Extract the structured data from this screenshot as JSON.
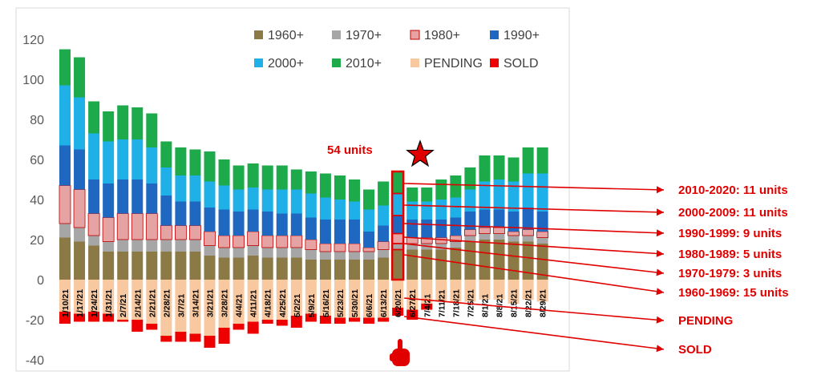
{
  "chart_data": {
    "type": "bar",
    "stacked": true,
    "ylim": [
      -40,
      120
    ],
    "yticks": [
      -40,
      -20,
      0,
      20,
      40,
      60,
      80,
      100,
      120
    ],
    "grid": false,
    "legend_position": "top-right",
    "categories": [
      "1/10/21",
      "1/17/21",
      "1/24/21",
      "1/31/21",
      "2/7/21",
      "2/14/21",
      "2/21/21",
      "2/28/21",
      "3/7/21",
      "3/14/21",
      "3/21/21",
      "3/28/21",
      "4/4/21",
      "4/11/21",
      "4/18/21",
      "4/25/21",
      "5/2/21",
      "5/9/21",
      "5/16/21",
      "5/23/21",
      "5/30/21",
      "6/6/21",
      "6/13/21",
      "6/20/21",
      "6/27/21",
      "7/4/21",
      "7/11/21",
      "7/18/21",
      "7/25/21",
      "8/1/21",
      "8/8/21",
      "8/15/21",
      "8/22/21",
      "8/29/21"
    ],
    "series": [
      {
        "name": "1960+",
        "color": "#8c7a46",
        "values": [
          21,
          19,
          17,
          14,
          14,
          14,
          14,
          14,
          14,
          14,
          12,
          11,
          11,
          12,
          11,
          11,
          11,
          10,
          10,
          10,
          10,
          10,
          11,
          15,
          15,
          15,
          15,
          16,
          19,
          20,
          20,
          19,
          19,
          18
        ]
      },
      {
        "name": "1970+",
        "color": "#a6a6a6",
        "values": [
          7,
          7,
          5,
          5,
          6,
          6,
          6,
          6,
          6,
          6,
          5,
          5,
          5,
          5,
          5,
          5,
          5,
          5,
          4,
          4,
          4,
          4,
          4,
          3,
          3,
          3,
          3,
          3,
          3,
          3,
          3,
          3,
          3,
          3
        ]
      },
      {
        "name": "1980+",
        "color": "#e6a3a3",
        "values": [
          19,
          19,
          11,
          12,
          13,
          13,
          13,
          7,
          7,
          7,
          7,
          6,
          6,
          7,
          6,
          6,
          6,
          5,
          4,
          4,
          4,
          2,
          4,
          5,
          3,
          3,
          3,
          3,
          3,
          3,
          3,
          2,
          3,
          3
        ]
      },
      {
        "name": "1990+",
        "color": "#1f68c1",
        "values": [
          20,
          20,
          17,
          17,
          17,
          17,
          15,
          15,
          12,
          12,
          12,
          13,
          12,
          11,
          12,
          11,
          11,
          11,
          12,
          12,
          12,
          8,
          8,
          9,
          9,
          9,
          9,
          9,
          9,
          9,
          9,
          10,
          11,
          10
        ]
      },
      {
        "name": "2000+",
        "color": "#1fb0e8",
        "values": [
          30,
          26,
          23,
          21,
          20,
          20,
          18,
          14,
          13,
          13,
          13,
          12,
          11,
          11,
          11,
          12,
          12,
          12,
          11,
          10,
          9,
          11,
          10,
          11,
          9,
          9,
          10,
          10,
          11,
          14,
          15,
          15,
          17,
          19
        ]
      },
      {
        "name": "2010+",
        "color": "#1daa4a",
        "values": [
          18,
          20,
          16,
          15,
          17,
          16,
          17,
          13,
          14,
          13,
          15,
          13,
          12,
          12,
          12,
          12,
          10,
          11,
          12,
          12,
          11,
          10,
          12,
          11,
          7,
          7,
          10,
          11,
          11,
          13,
          12,
          12,
          13,
          13
        ]
      },
      {
        "name": "PENDING",
        "color": "#f8c9a0",
        "values": [
          -16,
          -17,
          -16,
          -17,
          -20,
          -20,
          -22,
          -28,
          -26,
          -27,
          -28,
          -24,
          -22,
          -21,
          -20,
          -20,
          -18,
          -17,
          -18,
          -19,
          -19,
          -19,
          -19,
          -14,
          -15,
          -12,
          -11,
          -11,
          -11,
          -10,
          -10,
          -12,
          -10,
          -11
        ]
      },
      {
        "name": "SOLD",
        "color": "#ee0000",
        "values": [
          -6,
          -4,
          -5,
          -4,
          -1,
          -6,
          -3,
          -3,
          -5,
          -4,
          -6,
          -8,
          -3,
          -6,
          -2,
          -3,
          -6,
          -4,
          -4,
          -3,
          -2,
          -3,
          -2,
          -4,
          -5,
          -3,
          0,
          0,
          0,
          0,
          0,
          0,
          0,
          0
        ]
      }
    ],
    "highlight_index": 23,
    "annotations": {
      "total_label": "54 units",
      "callouts": [
        "2010-2020: 11 units",
        "2000-2009: 11 units",
        "1990-1999:   9 units",
        "1980-1989:   5 units",
        "1970-1979:   3 units",
        "1960-1969: 15 units",
        "PENDING",
        "SOLD"
      ]
    },
    "accent_color": "#e00000"
  }
}
